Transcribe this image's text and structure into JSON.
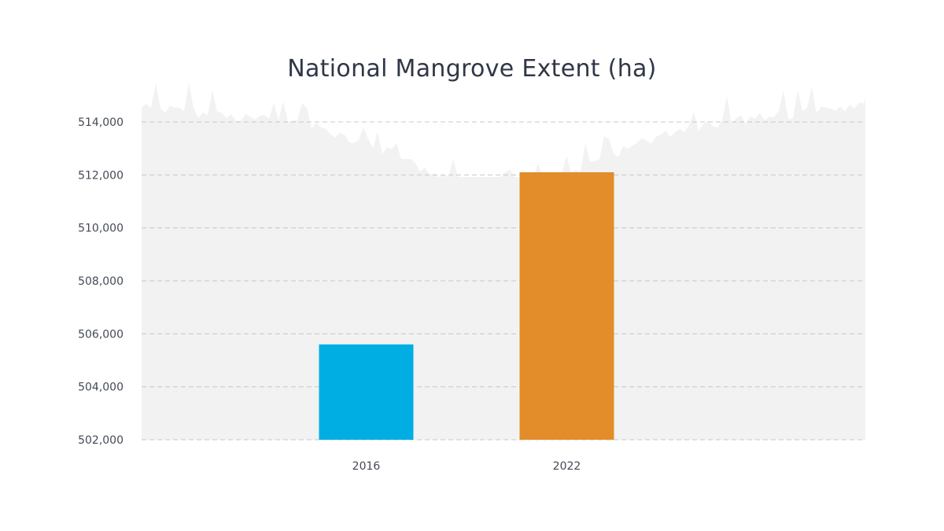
{
  "chart_data": {
    "type": "bar",
    "title": "National Mangrove Extent (ha)",
    "xlabel": "",
    "ylabel": "",
    "categories": [
      "2016",
      "2022"
    ],
    "values": [
      505600,
      512100
    ],
    "ylim": [
      502000,
      514000
    ],
    "yticks": [
      502000,
      504000,
      506000,
      508000,
      510000,
      512000,
      514000
    ],
    "ytick_labels": [
      "502,000",
      "504,000",
      "506,000",
      "508,000",
      "510,000",
      "512,000",
      "514,000"
    ],
    "bar_colors": [
      "#00aee3",
      "#e28d29"
    ],
    "grid": true,
    "background_color": "#f2f2f2"
  }
}
